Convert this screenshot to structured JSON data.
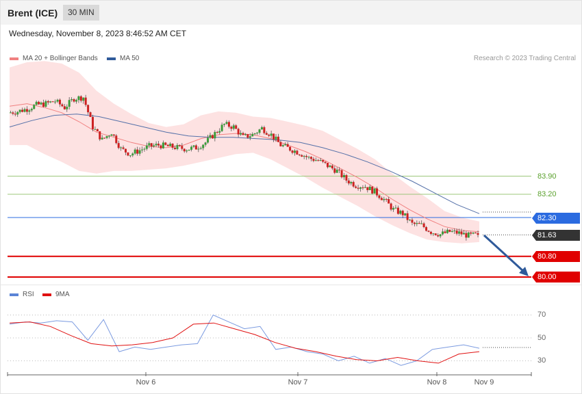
{
  "header": {
    "instrument": "Brent (ICE)",
    "timeframe": "30 MIN"
  },
  "timestamp": "Wednesday, November 8, 2023 8:46:52 AM CET",
  "legend": {
    "ma20": {
      "label": "MA 20 + Bollinger Bands",
      "color": "#f08080"
    },
    "ma50": {
      "label": "MA 50",
      "color": "#2f5a9a"
    }
  },
  "credit": "Research © 2023 Trading Central",
  "rsi_legend": {
    "rsi": {
      "label": "RSI",
      "color": "#5b84d6"
    },
    "ma9": {
      "label": "9MA",
      "color": "#e01010"
    }
  },
  "levels": [
    {
      "value": 83.9,
      "label": "83.90",
      "kind": "resistance",
      "color": "#5aa02c"
    },
    {
      "value": 83.2,
      "label": "83.20",
      "kind": "resistance",
      "color": "#5aa02c"
    },
    {
      "value": 82.3,
      "label": "82.30",
      "kind": "pivot",
      "color": "#2b6be0"
    },
    {
      "value": 81.63,
      "label": "81.63",
      "kind": "last",
      "color": "#333333"
    },
    {
      "value": 80.8,
      "label": "80.80",
      "kind": "support",
      "color": "#e00000"
    },
    {
      "value": 80.0,
      "label": "80.00",
      "kind": "support",
      "color": "#e00000"
    }
  ],
  "x_labels": [
    "Nov 6",
    "Nov 7",
    "Nov 8",
    "Nov 9"
  ],
  "rsi_ticks": [
    "70",
    "50",
    "30"
  ],
  "chart_data": {
    "type": "candlestick",
    "interval": "30 MIN",
    "x": [
      "Nov 6",
      "Nov 7",
      "Nov 8",
      "Nov 9"
    ],
    "price_levels": [
      83.9,
      83.2,
      82.3,
      81.63,
      80.8,
      80.0
    ],
    "last_price": 81.63,
    "close_path": [
      86.35,
      86.4,
      86.5,
      86.65,
      86.7,
      86.8,
      86.55,
      86.9,
      86.95,
      85.8,
      85.3,
      85.6,
      84.95,
      84.75,
      84.9,
      85.05,
      85.1,
      85.05,
      85.0,
      84.95,
      85.0,
      85.2,
      85.55,
      85.9,
      85.8,
      85.4,
      85.5,
      85.75,
      85.5,
      85.1,
      84.95,
      84.8,
      84.6,
      84.5,
      84.3,
      84.1,
      83.75,
      83.55,
      83.5,
      83.3,
      83.0,
      82.6,
      82.45,
      82.05,
      82.0,
      81.75,
      81.65,
      81.75,
      81.7,
      81.6,
      81.63
    ],
    "ma20_path": [
      86.6,
      86.7,
      86.55,
      86.35,
      86.0,
      85.6,
      85.4,
      85.2,
      85.05,
      85.0,
      85.1,
      85.35,
      85.5,
      85.55,
      85.5,
      85.35,
      85.1,
      84.85,
      84.55,
      84.2,
      83.85,
      83.45,
      83.0,
      82.6,
      82.25,
      81.95,
      81.8,
      81.75
    ],
    "ma50_path": [
      85.8,
      86.05,
      86.25,
      86.3,
      86.2,
      86.0,
      85.8,
      85.6,
      85.45,
      85.4,
      85.4,
      85.35,
      85.3,
      85.2,
      85.0,
      84.75,
      84.45,
      84.1,
      83.7,
      83.25,
      82.8,
      82.45
    ],
    "rsi": [
      62,
      64,
      63,
      65,
      64,
      48,
      66,
      38,
      42,
      40,
      42,
      44,
      45,
      70,
      64,
      58,
      60,
      40,
      42,
      38,
      36,
      30,
      34,
      28,
      32,
      26,
      30,
      40,
      42,
      44,
      41
    ],
    "rsi_ma9": [
      63,
      64,
      60,
      52,
      45,
      43,
      44,
      46,
      50,
      62,
      63,
      58,
      53,
      46,
      41,
      38,
      34,
      31,
      30,
      33,
      30,
      28,
      36,
      38
    ],
    "forecast": {
      "direction": "down",
      "target": 80.0
    }
  }
}
